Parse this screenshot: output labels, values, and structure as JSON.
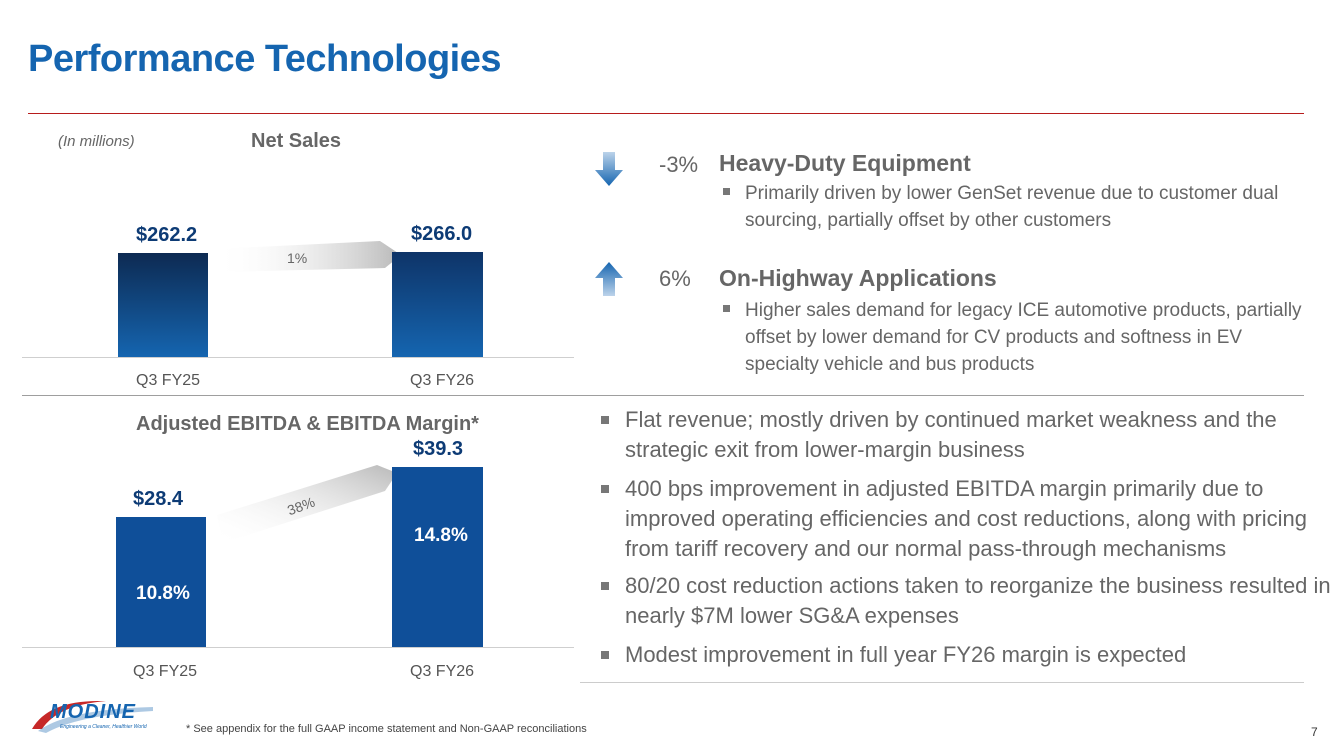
{
  "slide": {
    "title": "Performance Technologies",
    "units_note": "(In millions)",
    "footnote": "* See appendix for the full GAAP income statement and Non-GAAP reconciliations",
    "page_number": "7"
  },
  "brand": {
    "logo_text": "MODINE",
    "tagline": "Engineering a Cleaner, Healthier World",
    "accent_color": "#1565b0",
    "rule_color": "#b71c1c"
  },
  "chart_data": [
    {
      "type": "bar",
      "title": "Net Sales",
      "categories": [
        "Q3 FY25",
        "Q3 FY26"
      ],
      "values": [
        262.2,
        266.0
      ],
      "value_labels": [
        "$262.2",
        "$266.0"
      ],
      "growth_label": "1%",
      "ylabel": "",
      "xlabel": ""
    },
    {
      "type": "bar",
      "title": "Adjusted EBITDA & EBITDA Margin*",
      "categories": [
        "Q3 FY25",
        "Q3 FY26"
      ],
      "values": [
        28.4,
        39.3
      ],
      "value_labels": [
        "$28.4",
        "$39.3"
      ],
      "margins": [
        "10.8%",
        "14.8%"
      ],
      "growth_label": "38%",
      "ylabel": "",
      "xlabel": ""
    }
  ],
  "segments": [
    {
      "direction": "down",
      "percent": "-3%",
      "title": "Heavy-Duty Equipment",
      "bullet": "Primarily driven by lower GenSet revenue due to customer dual sourcing, partially offset by other customers"
    },
    {
      "direction": "up",
      "percent": "6%",
      "title": "On-Highway Applications",
      "bullet": "Higher sales demand for legacy ICE automotive products, partially offset by lower demand for CV products and softness in EV specialty vehicle and bus products"
    }
  ],
  "bullets": [
    "Flat revenue; mostly driven by continued market weakness and the strategic exit from lower-margin business",
    "400 bps improvement in adjusted EBITDA margin primarily due to improved operating efficiencies and cost reductions, along with pricing from tariff recovery and our normal pass-through mechanisms",
    "80/20 cost reduction actions taken to reorganize the business resulted in nearly $7M lower SG&A expenses",
    "Modest improvement in full year FY26 margin is expected"
  ]
}
